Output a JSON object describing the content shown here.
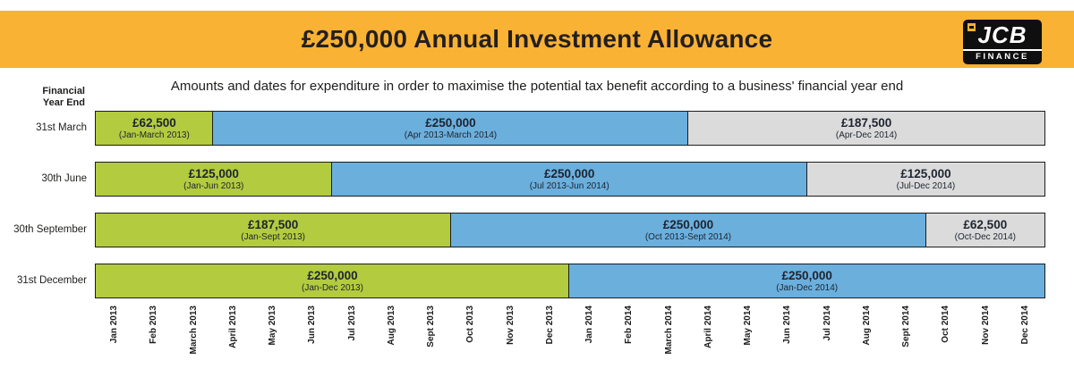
{
  "header": {
    "title": "£250,000 Annual Investment Allowance",
    "logo": {
      "brand": "JCB",
      "sub": "FINANCE"
    }
  },
  "subtitle": "Amounts and dates for expenditure in order to maximise the potential tax benefit according to a business' financial year end",
  "axis_header": {
    "line1": "Financial",
    "line2": "Year End"
  },
  "colors": {
    "band": "#F9B233",
    "green": "#B3CB3F",
    "blue": "#6BAFDD",
    "grey": "#DBDBDB",
    "border": "#1C1C1C",
    "text": "#1D1D1B"
  },
  "chart_data": {
    "type": "bar",
    "subtype": "horizontal-timeline-gantt",
    "title": "£250,000 Annual Investment Allowance",
    "y_axis_label": "Financial Year End",
    "grid": false,
    "legend": false,
    "x_categories": [
      "Jan 2013",
      "Feb 2013",
      "March 2013",
      "April 2013",
      "May 2013",
      "Jun 2013",
      "Jul 2013",
      "Aug 2013",
      "Sept 2013",
      "Oct 2013",
      "Nov 2013",
      "Dec 2013",
      "Jan 2014",
      "Feb 2014",
      "March 2014",
      "April 2014",
      "May 2014",
      "Jun 2014",
      "Jul 2014",
      "Aug 2014",
      "Sept 2014",
      "Oct 2014",
      "Nov 2014",
      "Dec 2014"
    ],
    "x_range": [
      "Jan 2013",
      "Dec 2014"
    ],
    "rows": [
      {
        "year_end": "31st March",
        "segments": [
          {
            "amount": "£62,500",
            "value_gbp": 62500,
            "period": "(Jan-March 2013)",
            "start": 0,
            "end": 3,
            "color": "green"
          },
          {
            "amount": "£250,000",
            "value_gbp": 250000,
            "period": "(Apr 2013-March 2014)",
            "start": 3,
            "end": 15,
            "color": "blue"
          },
          {
            "amount": "£187,500",
            "value_gbp": 187500,
            "period": "(Apr-Dec 2014)",
            "start": 15,
            "end": 24,
            "color": "grey"
          }
        ]
      },
      {
        "year_end": "30th June",
        "segments": [
          {
            "amount": "£125,000",
            "value_gbp": 125000,
            "period": "(Jan-Jun 2013)",
            "start": 0,
            "end": 6,
            "color": "green"
          },
          {
            "amount": "£250,000",
            "value_gbp": 250000,
            "period": "(Jul 2013-Jun 2014)",
            "start": 6,
            "end": 18,
            "color": "blue"
          },
          {
            "amount": "£125,000",
            "value_gbp": 125000,
            "period": "(Jul-Dec 2014)",
            "start": 18,
            "end": 24,
            "color": "grey"
          }
        ]
      },
      {
        "year_end": "30th September",
        "segments": [
          {
            "amount": "£187,500",
            "value_gbp": 187500,
            "period": "(Jan-Sept 2013)",
            "start": 0,
            "end": 9,
            "color": "green"
          },
          {
            "amount": "£250,000",
            "value_gbp": 250000,
            "period": "(Oct 2013-Sept 2014)",
            "start": 9,
            "end": 21,
            "color": "blue"
          },
          {
            "amount": "£62,500",
            "value_gbp": 62500,
            "period": "(Oct-Dec 2014)",
            "start": 21,
            "end": 24,
            "color": "grey"
          }
        ]
      },
      {
        "year_end": "31st December",
        "segments": [
          {
            "amount": "£250,000",
            "value_gbp": 250000,
            "period": "(Jan-Dec 2013)",
            "start": 0,
            "end": 12,
            "color": "green"
          },
          {
            "amount": "£250,000",
            "value_gbp": 250000,
            "period": "(Jan-Dec 2014)",
            "start": 12,
            "end": 24,
            "color": "blue"
          }
        ]
      }
    ]
  }
}
